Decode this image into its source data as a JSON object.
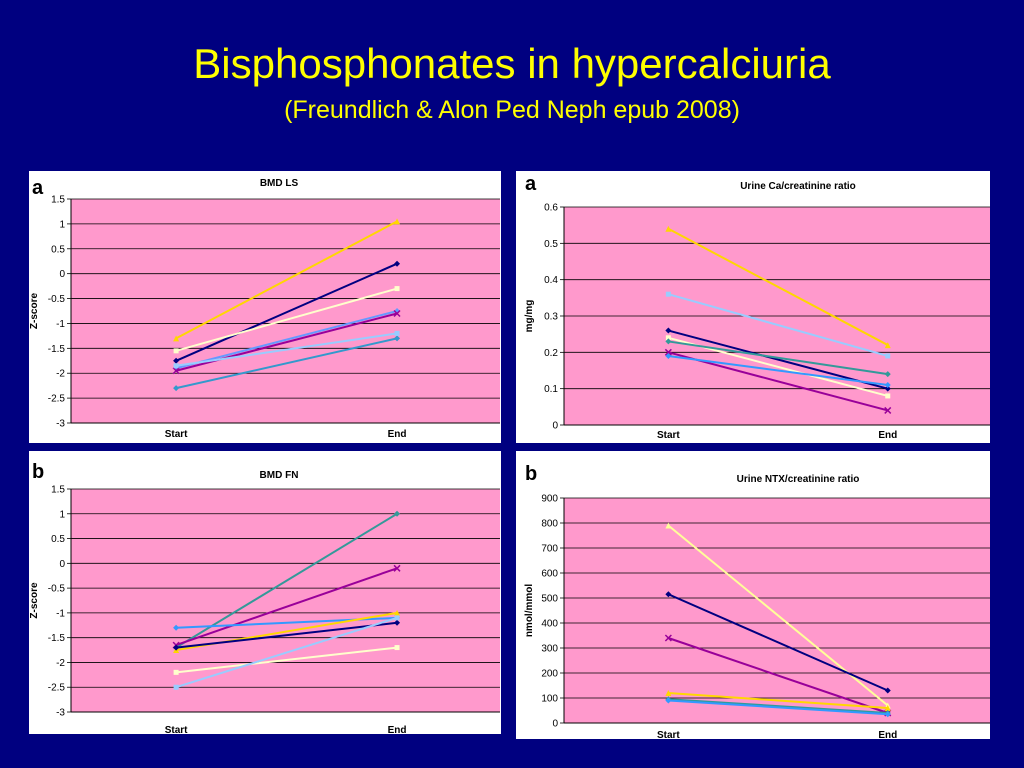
{
  "slide": {
    "title": "Bisphosphonates in hypercalciuria",
    "subtitle": "(Freundlich & Alon Ped Neph epub 2008)"
  },
  "colors": {
    "background": "#000080",
    "title": "#FFFF00",
    "plot_bg": "#FF99CC"
  },
  "chart_data": [
    {
      "type": "line",
      "panel_letter": "a",
      "title": "BMD LS",
      "ylabel": "Z-score",
      "xlabel": "",
      "categories": [
        "Start",
        "End"
      ],
      "ylim": [
        -3,
        1.5
      ],
      "yticks": [
        1.5,
        1,
        0.5,
        0,
        -0.5,
        -1,
        -1.5,
        -2,
        -2.5,
        -3
      ],
      "ytick_labels": [
        "1.5",
        "1",
        "0.5",
        "0",
        "-0.5",
        "-1",
        "-1.5",
        "-2",
        "-2.5",
        "-3"
      ],
      "grid": true,
      "series": [
        {
          "values": [
            -1.3,
            1.05
          ],
          "color": "#FFD700",
          "marker": "triangle"
        },
        {
          "values": [
            -1.75,
            0.2
          ],
          "color": "#000080",
          "marker": "diamond"
        },
        {
          "values": [
            -1.55,
            -0.3
          ],
          "color": "#FFFFCC",
          "marker": "square"
        },
        {
          "values": [
            -1.9,
            -0.75
          ],
          "color": "#6699FF",
          "marker": "diamond"
        },
        {
          "values": [
            -1.95,
            -0.8
          ],
          "color": "#990099",
          "marker": "x"
        },
        {
          "values": [
            -2.3,
            -1.3
          ],
          "color": "#3399CC",
          "marker": "diamond"
        },
        {
          "values": [
            -1.85,
            -1.2
          ],
          "color": "#99CCFF",
          "marker": "square"
        }
      ]
    },
    {
      "type": "line",
      "panel_letter": "a",
      "title": "Urine Ca/creatinine ratio",
      "ylabel": "mg/mg",
      "xlabel": "",
      "categories": [
        "Start",
        "End"
      ],
      "ylim": [
        0,
        0.6
      ],
      "yticks": [
        0.6,
        0.5,
        0.4,
        0.3,
        0.2,
        0.1,
        0
      ],
      "ytick_labels": [
        "0.6",
        "0.5",
        "0.4",
        "0.3",
        "0.2",
        "0.1",
        "0"
      ],
      "grid": true,
      "series": [
        {
          "values": [
            0.54,
            0.22
          ],
          "color": "#FFD700",
          "marker": "triangle"
        },
        {
          "values": [
            0.36,
            0.19
          ],
          "color": "#99CCFF",
          "marker": "square"
        },
        {
          "values": [
            0.26,
            0.1
          ],
          "color": "#000080",
          "marker": "diamond"
        },
        {
          "values": [
            0.24,
            0.08
          ],
          "color": "#FFFFCC",
          "marker": "square"
        },
        {
          "values": [
            0.23,
            0.14
          ],
          "color": "#339999",
          "marker": "diamond"
        },
        {
          "values": [
            0.2,
            0.04
          ],
          "color": "#990099",
          "marker": "x"
        },
        {
          "values": [
            0.19,
            0.11
          ],
          "color": "#3399FF",
          "marker": "diamond"
        }
      ]
    },
    {
      "type": "line",
      "panel_letter": "b",
      "title": "BMD FN",
      "ylabel": "Z-score",
      "xlabel": "",
      "categories": [
        "Start",
        "End"
      ],
      "ylim": [
        -3,
        1.5
      ],
      "yticks": [
        1.5,
        1,
        0.5,
        0,
        -0.5,
        -1,
        -1.5,
        -2,
        -2.5,
        -3
      ],
      "ytick_labels": [
        "1.5",
        "1",
        "0.5",
        "0",
        "-0.5",
        "-1",
        "-1.5",
        "-2",
        "-2.5",
        "-3"
      ],
      "grid": true,
      "series": [
        {
          "values": [
            -1.7,
            1.0
          ],
          "color": "#339999",
          "marker": "diamond"
        },
        {
          "values": [
            -1.65,
            -0.1
          ],
          "color": "#990099",
          "marker": "x"
        },
        {
          "values": [
            -1.3,
            -1.1
          ],
          "color": "#3399FF",
          "marker": "diamond"
        },
        {
          "values": [
            -1.75,
            -1.0
          ],
          "color": "#FFD700",
          "marker": "triangle"
        },
        {
          "values": [
            -1.7,
            -1.2
          ],
          "color": "#000080",
          "marker": "diamond"
        },
        {
          "values": [
            -2.2,
            -1.7
          ],
          "color": "#FFFFCC",
          "marker": "square"
        },
        {
          "values": [
            -2.5,
            -1.1
          ],
          "color": "#99CCFF",
          "marker": "square"
        }
      ]
    },
    {
      "type": "line",
      "panel_letter": "b",
      "title": "Urine NTX/creatinine ratio",
      "ylabel": "nmol/mmol",
      "xlabel": "",
      "categories": [
        "Start",
        "End"
      ],
      "ylim": [
        0,
        900
      ],
      "yticks": [
        900,
        800,
        700,
        600,
        500,
        400,
        300,
        200,
        100,
        0
      ],
      "ytick_labels": [
        "900",
        "800",
        "700",
        "600",
        "500",
        "400",
        "300",
        "200",
        "100",
        "0"
      ],
      "grid": true,
      "series": [
        {
          "values": [
            790,
            70
          ],
          "color": "#FFFF99",
          "marker": "triangle"
        },
        {
          "values": [
            515,
            130
          ],
          "color": "#000080",
          "marker": "diamond"
        },
        {
          "values": [
            340,
            40
          ],
          "color": "#990099",
          "marker": "x"
        },
        {
          "values": [
            120,
            60
          ],
          "color": "#FFD700",
          "marker": "triangle"
        },
        {
          "values": [
            95,
            40
          ],
          "color": "#339999",
          "marker": "diamond"
        },
        {
          "values": [
            90,
            35
          ],
          "color": "#3399FF",
          "marker": "diamond"
        }
      ]
    }
  ]
}
